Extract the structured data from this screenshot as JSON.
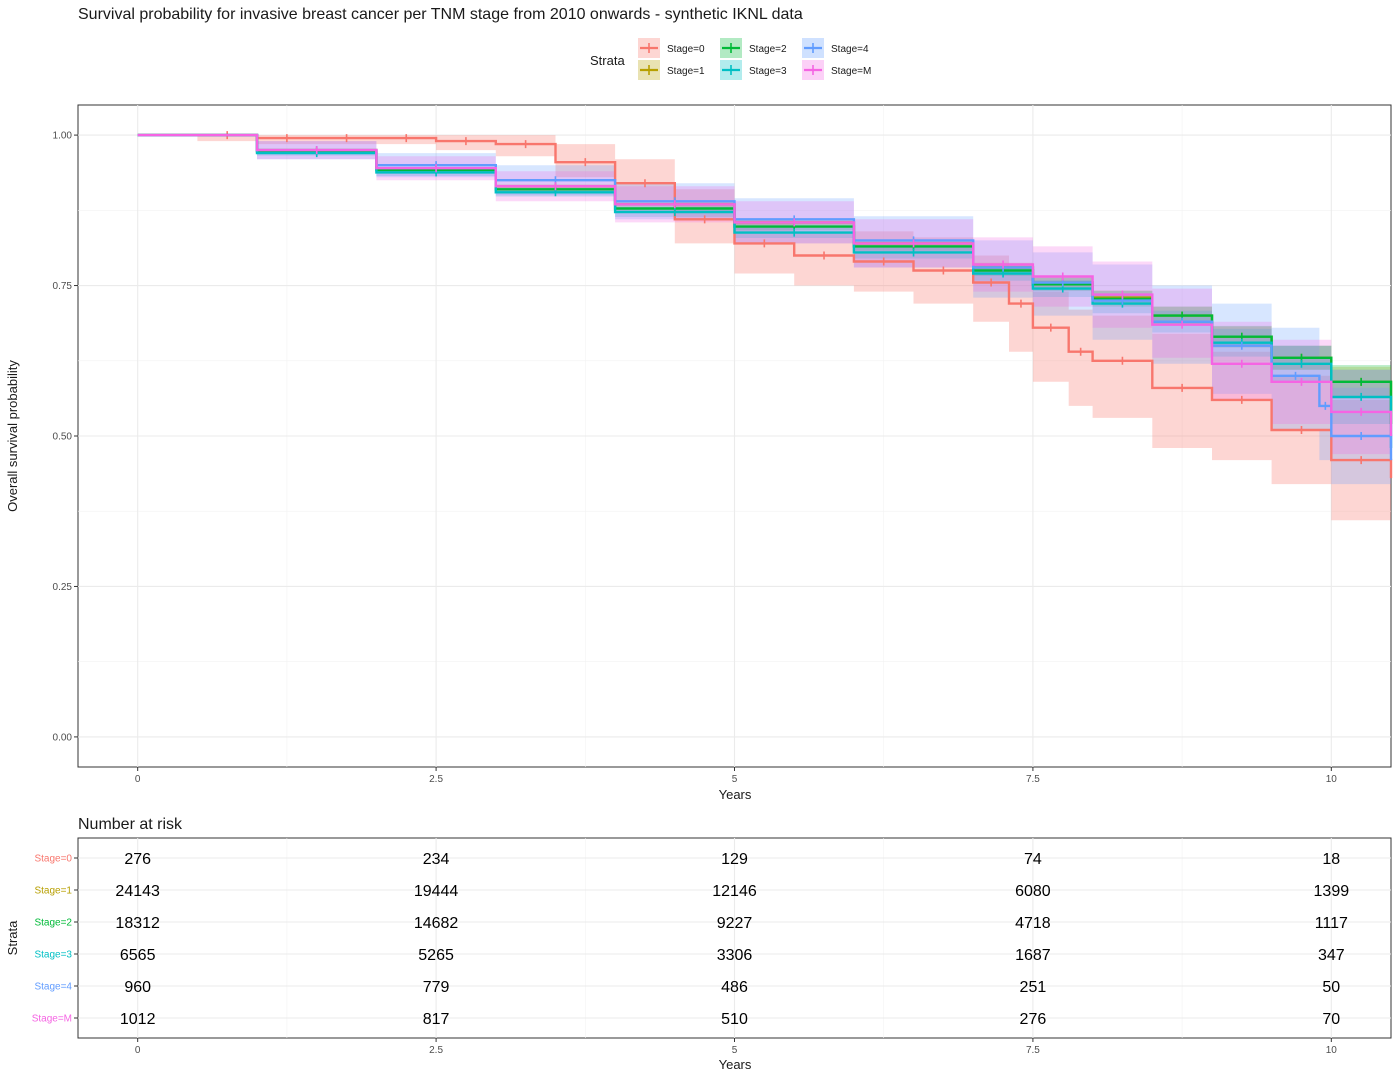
{
  "chart_data": [
    {
      "type": "line",
      "title": "Survival probability for invasive breast cancer per TNM stage from 2010 onwards - synthetic IKNL data",
      "xlabel": "Years",
      "ylabel": "Overall survival probability",
      "xlim": [
        -0.5,
        10.5
      ],
      "ylim": [
        -0.05,
        1.05
      ],
      "x_ticks": [
        "0",
        "2.5",
        "5",
        "7.5",
        "10"
      ],
      "y_ticks": [
        "0.00",
        "0.25",
        "0.50",
        "0.75",
        "1.00"
      ],
      "grid": true,
      "legend": {
        "title": "Strata",
        "position": "top",
        "entries": [
          "Stage=0",
          "Stage=1",
          "Stage=2",
          "Stage=3",
          "Stage=4",
          "Stage=M"
        ]
      },
      "series": [
        {
          "name": "Stage=0",
          "color": "#F8766D",
          "x": [
            0,
            0.5,
            1,
            1.5,
            2,
            2.5,
            3,
            3.5,
            4,
            4.5,
            5,
            5.5,
            6,
            6.5,
            7,
            7.3,
            7.5,
            7.8,
            8,
            8.5,
            9,
            9.5,
            10,
            10.5
          ],
          "y": [
            1.0,
            1.0,
            0.995,
            0.995,
            0.995,
            0.99,
            0.985,
            0.955,
            0.92,
            0.86,
            0.82,
            0.8,
            0.79,
            0.775,
            0.755,
            0.72,
            0.68,
            0.64,
            0.625,
            0.58,
            0.56,
            0.51,
            0.46,
            0.43
          ],
          "lower": [
            1.0,
            0.99,
            0.985,
            0.985,
            0.985,
            0.975,
            0.965,
            0.93,
            0.89,
            0.82,
            0.77,
            0.75,
            0.74,
            0.72,
            0.69,
            0.64,
            0.59,
            0.55,
            0.53,
            0.48,
            0.46,
            0.42,
            0.36,
            0.32
          ],
          "upper": [
            1.0,
            1.0,
            1.0,
            1.0,
            1.0,
            1.0,
            1.0,
            0.985,
            0.96,
            0.91,
            0.86,
            0.84,
            0.84,
            0.83,
            0.8,
            0.77,
            0.74,
            0.71,
            0.7,
            0.67,
            0.64,
            0.6,
            0.56,
            0.53
          ]
        },
        {
          "name": "Stage=1",
          "color": "#B79F00",
          "x": [
            0,
            1,
            2,
            3,
            4,
            5,
            6,
            7,
            7.5,
            8,
            8.5,
            9,
            9.5,
            10,
            10.5
          ],
          "y": [
            1.0,
            0.975,
            0.945,
            0.915,
            0.885,
            0.855,
            0.82,
            0.78,
            0.755,
            0.73,
            0.7,
            0.665,
            0.63,
            0.59,
            0.52
          ],
          "lower": [
            1.0,
            0.974,
            0.943,
            0.912,
            0.882,
            0.851,
            0.815,
            0.772,
            0.745,
            0.718,
            0.685,
            0.648,
            0.61,
            0.565,
            0.49
          ],
          "upper": [
            1.0,
            0.976,
            0.947,
            0.918,
            0.888,
            0.859,
            0.825,
            0.788,
            0.765,
            0.742,
            0.715,
            0.682,
            0.65,
            0.615,
            0.55
          ]
        },
        {
          "name": "Stage=2",
          "color": "#00BA38",
          "x": [
            0,
            1,
            2,
            3,
            4,
            5,
            6,
            7,
            7.5,
            8,
            8.5,
            9,
            9.5,
            10,
            10.5
          ],
          "y": [
            1.0,
            0.973,
            0.942,
            0.91,
            0.878,
            0.848,
            0.815,
            0.775,
            0.752,
            0.728,
            0.7,
            0.665,
            0.63,
            0.59,
            0.52
          ],
          "lower": [
            1.0,
            0.971,
            0.939,
            0.906,
            0.873,
            0.842,
            0.808,
            0.766,
            0.741,
            0.715,
            0.685,
            0.647,
            0.61,
            0.562,
            0.49
          ],
          "upper": [
            1.0,
            0.975,
            0.945,
            0.914,
            0.883,
            0.854,
            0.822,
            0.784,
            0.763,
            0.741,
            0.715,
            0.683,
            0.65,
            0.618,
            0.55
          ]
        },
        {
          "name": "Stage=3",
          "color": "#00BFC4",
          "x": [
            0,
            1,
            2,
            3,
            4,
            5,
            6,
            7,
            7.5,
            8,
            8.5,
            9,
            9.5,
            10,
            10.5
          ],
          "y": [
            1.0,
            0.97,
            0.938,
            0.905,
            0.872,
            0.838,
            0.805,
            0.77,
            0.745,
            0.72,
            0.69,
            0.655,
            0.62,
            0.565,
            0.48
          ],
          "lower": [
            1.0,
            0.966,
            0.932,
            0.898,
            0.864,
            0.829,
            0.795,
            0.758,
            0.731,
            0.704,
            0.672,
            0.632,
            0.59,
            0.52,
            0.43
          ],
          "upper": [
            1.0,
            0.974,
            0.944,
            0.912,
            0.88,
            0.847,
            0.815,
            0.782,
            0.759,
            0.736,
            0.708,
            0.678,
            0.65,
            0.61,
            0.53
          ]
        },
        {
          "name": "Stage=4",
          "color": "#619CFF",
          "x": [
            0,
            1,
            2,
            3,
            4,
            5,
            6,
            7,
            7.5,
            8,
            8.5,
            9,
            9.5,
            9.9,
            10,
            10.5
          ],
          "y": [
            1.0,
            0.975,
            0.95,
            0.925,
            0.89,
            0.86,
            0.825,
            0.78,
            0.755,
            0.725,
            0.69,
            0.65,
            0.6,
            0.55,
            0.5,
            0.46
          ],
          "lower": [
            1.0,
            0.96,
            0.93,
            0.9,
            0.86,
            0.82,
            0.78,
            0.73,
            0.7,
            0.66,
            0.62,
            0.57,
            0.51,
            0.46,
            0.42,
            0.38
          ],
          "upper": [
            1.0,
            0.99,
            0.97,
            0.95,
            0.92,
            0.895,
            0.865,
            0.825,
            0.805,
            0.785,
            0.75,
            0.72,
            0.68,
            0.63,
            0.58,
            0.55
          ]
        },
        {
          "name": "Stage=M",
          "color": "#F564E3",
          "x": [
            0,
            1,
            2,
            3,
            4,
            5,
            6,
            7,
            7.5,
            8,
            8.5,
            9,
            9.5,
            10,
            10.5
          ],
          "y": [
            1.0,
            0.975,
            0.945,
            0.915,
            0.885,
            0.855,
            0.82,
            0.785,
            0.765,
            0.735,
            0.685,
            0.62,
            0.59,
            0.54,
            0.5
          ],
          "lower": [
            1.0,
            0.96,
            0.925,
            0.89,
            0.855,
            0.82,
            0.78,
            0.74,
            0.715,
            0.68,
            0.63,
            0.56,
            0.52,
            0.47,
            0.43
          ],
          "upper": [
            1.0,
            0.99,
            0.965,
            0.94,
            0.915,
            0.89,
            0.86,
            0.83,
            0.815,
            0.79,
            0.745,
            0.69,
            0.66,
            0.61,
            0.57
          ]
        }
      ]
    },
    {
      "type": "table",
      "title": "Number at risk",
      "xlabel": "Years",
      "ylabel": "Strata",
      "x_ticks": [
        "0",
        "2.5",
        "5",
        "7.5",
        "10"
      ],
      "columns": [
        0,
        2.5,
        5,
        7.5,
        10
      ],
      "rows": [
        {
          "label": "Stage=0",
          "color": "#F8766D",
          "values": [
            "276",
            "234",
            "129",
            "74",
            "18"
          ]
        },
        {
          "label": "Stage=1",
          "color": "#B79F00",
          "values": [
            "24143",
            "19444",
            "12146",
            "6080",
            "1399"
          ]
        },
        {
          "label": "Stage=2",
          "color": "#00BA38",
          "values": [
            "18312",
            "14682",
            "9227",
            "4718",
            "1117"
          ]
        },
        {
          "label": "Stage=3",
          "color": "#00BFC4",
          "values": [
            "6565",
            "5265",
            "3306",
            "1687",
            "347"
          ]
        },
        {
          "label": "Stage=4",
          "color": "#619CFF",
          "values": [
            "960",
            "779",
            "486",
            "251",
            "50"
          ]
        },
        {
          "label": "Stage=M",
          "color": "#F564E3",
          "values": [
            "1012",
            "817",
            "510",
            "276",
            "70"
          ]
        }
      ]
    }
  ]
}
